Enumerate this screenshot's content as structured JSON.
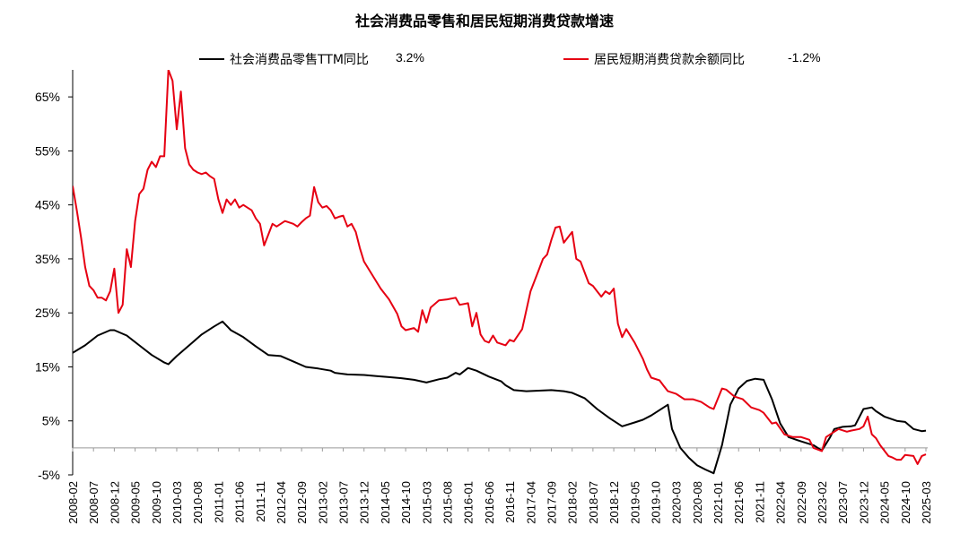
{
  "chart_data": {
    "type": "line",
    "title": "社会消费品零售和居民短期消费贷款增速",
    "xlabel": "",
    "ylabel": "",
    "ylim": [
      -5,
      70
    ],
    "yticks": [
      -5,
      5,
      15,
      25,
      35,
      45,
      55,
      65
    ],
    "ytick_labels": [
      "-5%",
      "5%",
      "15%",
      "25%",
      "35%",
      "45%",
      "55%",
      "65%"
    ],
    "x_start": "2008-02",
    "x_end": "2025-03",
    "xtick_labels": [
      "2008-02",
      "2008-07",
      "2008-12",
      "2009-05",
      "2009-10",
      "2010-03",
      "2010-08",
      "2011-01",
      "2011-06",
      "2011-11",
      "2012-04",
      "2012-09",
      "2013-02",
      "2013-07",
      "2013-12",
      "2014-05",
      "2014-10",
      "2015-03",
      "2015-08",
      "2016-01",
      "2016-06",
      "2016-11",
      "2017-04",
      "2017-09",
      "2018-02",
      "2018-07",
      "2018-12",
      "2019-05",
      "2019-10",
      "2020-03",
      "2020-08",
      "2021-01",
      "2021-06",
      "2021-11",
      "2022-04",
      "2022-09",
      "2023-02",
      "2023-07",
      "2023-12",
      "2024-05",
      "2024-10",
      "2025-03"
    ],
    "legend_position": "top",
    "grid": false,
    "series": [
      {
        "name": "社会消费品零售TTM同比",
        "latest_label": "3.2%",
        "color": "#000000",
        "points": [
          [
            "2008-02",
            17.6
          ],
          [
            "2008-05",
            19.0
          ],
          [
            "2008-08",
            20.8
          ],
          [
            "2008-11",
            21.8
          ],
          [
            "2008-12",
            21.8
          ],
          [
            "2009-03",
            20.8
          ],
          [
            "2009-06",
            19.0
          ],
          [
            "2009-09",
            17.2
          ],
          [
            "2009-12",
            15.8
          ],
          [
            "2010-01",
            15.5
          ],
          [
            "2010-03",
            17.0
          ],
          [
            "2010-06",
            19.0
          ],
          [
            "2010-09",
            21.0
          ],
          [
            "2010-12",
            22.5
          ],
          [
            "2011-02",
            23.4
          ],
          [
            "2011-04",
            21.8
          ],
          [
            "2011-07",
            20.5
          ],
          [
            "2011-10",
            18.8
          ],
          [
            "2012-01",
            17.2
          ],
          [
            "2012-04",
            17.0
          ],
          [
            "2012-07",
            16.0
          ],
          [
            "2012-10",
            15.0
          ],
          [
            "2013-01",
            14.7
          ],
          [
            "2013-04",
            14.3
          ],
          [
            "2013-05",
            13.9
          ],
          [
            "2013-08",
            13.6
          ],
          [
            "2013-12",
            13.5
          ],
          [
            "2014-03",
            13.3
          ],
          [
            "2014-06",
            13.1
          ],
          [
            "2014-09",
            12.9
          ],
          [
            "2014-12",
            12.6
          ],
          [
            "2015-03",
            12.1
          ],
          [
            "2015-06",
            12.7
          ],
          [
            "2015-08",
            13.0
          ],
          [
            "2015-10",
            13.9
          ],
          [
            "2015-11",
            13.6
          ],
          [
            "2016-01",
            14.8
          ],
          [
            "2016-03",
            14.3
          ],
          [
            "2016-06",
            13.2
          ],
          [
            "2016-09",
            12.3
          ],
          [
            "2016-10",
            11.6
          ],
          [
            "2016-12",
            10.7
          ],
          [
            "2017-03",
            10.5
          ],
          [
            "2017-06",
            10.6
          ],
          [
            "2017-09",
            10.7
          ],
          [
            "2017-12",
            10.5
          ],
          [
            "2018-02",
            10.2
          ],
          [
            "2018-05",
            9.2
          ],
          [
            "2018-08",
            7.2
          ],
          [
            "2018-11",
            5.5
          ],
          [
            "2019-02",
            4.0
          ],
          [
            "2019-05",
            4.7
          ],
          [
            "2019-07",
            5.2
          ],
          [
            "2019-09",
            6.0
          ],
          [
            "2019-11",
            7.0
          ],
          [
            "2020-01",
            8.0
          ],
          [
            "2020-02",
            3.5
          ],
          [
            "2020-04",
            0.0
          ],
          [
            "2020-06",
            -1.8
          ],
          [
            "2020-08",
            -3.2
          ],
          [
            "2020-10",
            -4.0
          ],
          [
            "2020-12",
            -4.7
          ],
          [
            "2021-02",
            0.5
          ],
          [
            "2021-04",
            8.0
          ],
          [
            "2021-06",
            11.0
          ],
          [
            "2021-08",
            12.4
          ],
          [
            "2021-10",
            12.8
          ],
          [
            "2021-12",
            12.6
          ],
          [
            "2022-02",
            9.0
          ],
          [
            "2022-04",
            4.5
          ],
          [
            "2022-06",
            2.0
          ],
          [
            "2022-09",
            1.2
          ],
          [
            "2022-12",
            0.5
          ],
          [
            "2023-02",
            -0.5
          ],
          [
            "2023-04",
            2.0
          ],
          [
            "2023-05",
            3.5
          ],
          [
            "2023-07",
            3.9
          ],
          [
            "2023-09",
            4.0
          ],
          [
            "2023-10",
            4.2
          ],
          [
            "2023-12",
            7.2
          ],
          [
            "2024-02",
            7.5
          ],
          [
            "2024-03",
            6.8
          ],
          [
            "2024-05",
            5.8
          ],
          [
            "2024-08",
            5.0
          ],
          [
            "2024-10",
            4.8
          ],
          [
            "2024-12",
            3.5
          ],
          [
            "2025-02",
            3.1
          ],
          [
            "2025-03",
            3.2
          ]
        ]
      },
      {
        "name": "居民短期消费贷款余额同比",
        "latest_label": "-1.2%",
        "color": "#e60012",
        "points": [
          [
            "2008-02",
            48.5
          ],
          [
            "2008-03",
            44.0
          ],
          [
            "2008-04",
            39.0
          ],
          [
            "2008-05",
            33.5
          ],
          [
            "2008-06",
            30.0
          ],
          [
            "2008-07",
            29.2
          ],
          [
            "2008-08",
            27.8
          ],
          [
            "2008-09",
            27.8
          ],
          [
            "2008-10",
            27.3
          ],
          [
            "2008-11",
            29.0
          ],
          [
            "2008-12",
            33.2
          ],
          [
            "2009-01",
            25.0
          ],
          [
            "2009-02",
            26.5
          ],
          [
            "2009-03",
            36.8
          ],
          [
            "2009-04",
            33.5
          ],
          [
            "2009-05",
            42.0
          ],
          [
            "2009-06",
            47.0
          ],
          [
            "2009-07",
            48.0
          ],
          [
            "2009-08",
            51.5
          ],
          [
            "2009-09",
            53.0
          ],
          [
            "2009-10",
            52.0
          ],
          [
            "2009-11",
            54.0
          ],
          [
            "2009-12",
            54.0
          ],
          [
            "2010-01",
            70.0
          ],
          [
            "2010-02",
            68.0
          ],
          [
            "2010-03",
            59.0
          ],
          [
            "2010-04",
            66.0
          ],
          [
            "2010-05",
            55.5
          ],
          [
            "2010-06",
            52.5
          ],
          [
            "2010-07",
            51.5
          ],
          [
            "2010-08",
            51.0
          ],
          [
            "2010-09",
            50.7
          ],
          [
            "2010-10",
            51.0
          ],
          [
            "2010-11",
            50.3
          ],
          [
            "2010-12",
            49.8
          ],
          [
            "2011-01",
            46.0
          ],
          [
            "2011-02",
            43.5
          ],
          [
            "2011-03",
            46.0
          ],
          [
            "2011-04",
            45.0
          ],
          [
            "2011-05",
            46.0
          ],
          [
            "2011-06",
            44.5
          ],
          [
            "2011-07",
            45.0
          ],
          [
            "2011-08",
            44.5
          ],
          [
            "2011-09",
            44.0
          ],
          [
            "2011-10",
            42.5
          ],
          [
            "2011-11",
            41.5
          ],
          [
            "2011-12",
            37.5
          ],
          [
            "2012-02",
            41.5
          ],
          [
            "2012-03",
            41.0
          ],
          [
            "2012-05",
            42.0
          ],
          [
            "2012-07",
            41.5
          ],
          [
            "2012-08",
            41.0
          ],
          [
            "2012-09",
            41.8
          ],
          [
            "2012-10",
            42.5
          ],
          [
            "2012-11",
            43.0
          ],
          [
            "2012-12",
            48.3
          ],
          [
            "2013-01",
            45.5
          ],
          [
            "2013-02",
            44.5
          ],
          [
            "2013-03",
            44.8
          ],
          [
            "2013-04",
            44.0
          ],
          [
            "2013-05",
            42.5
          ],
          [
            "2013-06",
            42.8
          ],
          [
            "2013-07",
            43.0
          ],
          [
            "2013-08",
            41.0
          ],
          [
            "2013-09",
            41.5
          ],
          [
            "2013-10",
            40.0
          ],
          [
            "2013-11",
            37.0
          ],
          [
            "2013-12",
            34.5
          ],
          [
            "2014-02",
            32.0
          ],
          [
            "2014-04",
            29.5
          ],
          [
            "2014-06",
            27.5
          ],
          [
            "2014-08",
            24.8
          ],
          [
            "2014-09",
            22.5
          ],
          [
            "2014-10",
            21.8
          ],
          [
            "2014-12",
            22.2
          ],
          [
            "2015-01",
            21.5
          ],
          [
            "2015-02",
            25.5
          ],
          [
            "2015-03",
            23.2
          ],
          [
            "2015-04",
            26.0
          ],
          [
            "2015-06",
            27.3
          ],
          [
            "2015-08",
            27.5
          ],
          [
            "2015-10",
            27.8
          ],
          [
            "2015-11",
            26.5
          ],
          [
            "2016-01",
            26.8
          ],
          [
            "2016-02",
            22.5
          ],
          [
            "2016-03",
            25.0
          ],
          [
            "2016-04",
            21.0
          ],
          [
            "2016-05",
            19.8
          ],
          [
            "2016-06",
            19.5
          ],
          [
            "2016-07",
            20.8
          ],
          [
            "2016-08",
            19.5
          ],
          [
            "2016-10",
            19.0
          ],
          [
            "2016-11",
            20.0
          ],
          [
            "2016-12",
            19.7
          ],
          [
            "2017-02",
            22.0
          ],
          [
            "2017-04",
            29.0
          ],
          [
            "2017-06",
            33.0
          ],
          [
            "2017-07",
            35.0
          ],
          [
            "2017-08",
            35.8
          ],
          [
            "2017-09",
            38.5
          ],
          [
            "2017-10",
            40.8
          ],
          [
            "2017-11",
            41.0
          ],
          [
            "2017-12",
            38.0
          ],
          [
            "2018-02",
            40.0
          ],
          [
            "2018-03",
            35.0
          ],
          [
            "2018-04",
            34.5
          ],
          [
            "2018-06",
            30.5
          ],
          [
            "2018-07",
            30.0
          ],
          [
            "2018-08",
            29.0
          ],
          [
            "2018-09",
            28.0
          ],
          [
            "2018-10",
            29.0
          ],
          [
            "2018-11",
            28.5
          ],
          [
            "2018-12",
            29.5
          ],
          [
            "2019-01",
            23.0
          ],
          [
            "2019-02",
            20.5
          ],
          [
            "2019-03",
            22.0
          ],
          [
            "2019-05",
            19.5
          ],
          [
            "2019-07",
            16.5
          ],
          [
            "2019-08",
            14.5
          ],
          [
            "2019-09",
            13.0
          ],
          [
            "2019-11",
            12.5
          ],
          [
            "2019-12",
            11.5
          ],
          [
            "2020-01",
            10.5
          ],
          [
            "2020-03",
            10.0
          ],
          [
            "2020-05",
            9.0
          ],
          [
            "2020-07",
            9.0
          ],
          [
            "2020-09",
            8.5
          ],
          [
            "2020-11",
            7.5
          ],
          [
            "2020-12",
            7.2
          ],
          [
            "2021-02",
            11.0
          ],
          [
            "2021-03",
            10.8
          ],
          [
            "2021-05",
            9.5
          ],
          [
            "2021-07",
            9.0
          ],
          [
            "2021-09",
            7.5
          ],
          [
            "2021-11",
            7.0
          ],
          [
            "2021-12",
            6.5
          ],
          [
            "2022-02",
            4.5
          ],
          [
            "2022-03",
            4.7
          ],
          [
            "2022-05",
            2.5
          ],
          [
            "2022-07",
            2.0
          ],
          [
            "2022-08",
            2.0
          ],
          [
            "2022-09",
            2.0
          ],
          [
            "2022-11",
            1.5
          ],
          [
            "2022-12",
            0.0
          ],
          [
            "2023-01",
            -0.3
          ],
          [
            "2023-02",
            -0.6
          ],
          [
            "2023-03",
            2.0
          ],
          [
            "2023-05",
            3.0
          ],
          [
            "2023-06",
            3.5
          ],
          [
            "2023-08",
            3.0
          ],
          [
            "2023-09",
            3.2
          ],
          [
            "2023-11",
            3.5
          ],
          [
            "2023-12",
            4.0
          ],
          [
            "2024-01",
            5.8
          ],
          [
            "2024-02",
            2.5
          ],
          [
            "2024-03",
            1.8
          ],
          [
            "2024-04",
            0.5
          ],
          [
            "2024-06",
            -1.5
          ],
          [
            "2024-07",
            -1.8
          ],
          [
            "2024-08",
            -2.2
          ],
          [
            "2024-09",
            -2.2
          ],
          [
            "2024-10",
            -1.3
          ],
          [
            "2024-12",
            -1.5
          ],
          [
            "2025-01",
            -3.0
          ],
          [
            "2025-02",
            -1.5
          ],
          [
            "2025-03",
            -1.2
          ]
        ]
      }
    ]
  }
}
